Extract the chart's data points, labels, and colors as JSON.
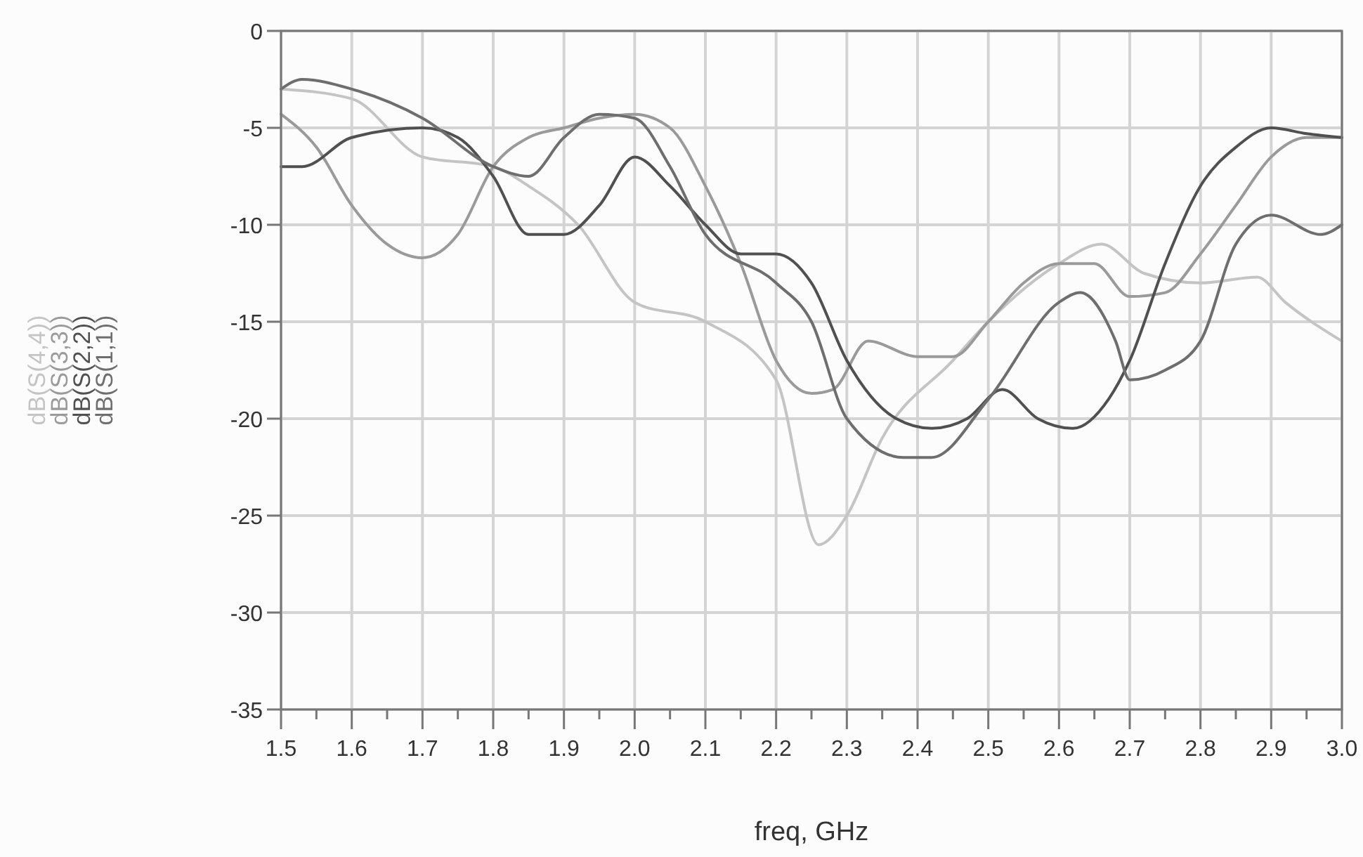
{
  "chart_data": {
    "type": "line",
    "xlabel": "freq, GHz",
    "xlim": [
      1.5,
      3.0
    ],
    "xticks": [
      {
        "value": 1.5,
        "label": "1.5"
      },
      {
        "value": 1.55,
        "label": null
      },
      {
        "value": 1.6,
        "label": "1.6"
      },
      {
        "value": 1.65,
        "label": null
      },
      {
        "value": 1.7,
        "label": "1.7"
      },
      {
        "value": 1.75,
        "label": null
      },
      {
        "value": 1.8,
        "label": "1.8"
      },
      {
        "value": 1.85,
        "label": null
      },
      {
        "value": 1.9,
        "label": "1.9"
      },
      {
        "value": 1.95,
        "label": null
      },
      {
        "value": 2.0,
        "label": "2.0"
      },
      {
        "value": 2.05,
        "label": null
      },
      {
        "value": 2.1,
        "label": "2.1"
      },
      {
        "value": 2.15,
        "label": null
      },
      {
        "value": 2.2,
        "label": "2.2"
      },
      {
        "value": 2.25,
        "label": null
      },
      {
        "value": 2.3,
        "label": "2.3"
      },
      {
        "value": 2.35,
        "label": null
      },
      {
        "value": 2.4,
        "label": "2.4"
      },
      {
        "value": 2.45,
        "label": null
      },
      {
        "value": 2.5,
        "label": "2.5"
      },
      {
        "value": 2.55,
        "label": null
      },
      {
        "value": 2.6,
        "label": "2.6"
      },
      {
        "value": 2.65,
        "label": null
      },
      {
        "value": 2.7,
        "label": "2.7"
      },
      {
        "value": 2.75,
        "label": null
      },
      {
        "value": 2.8,
        "label": "2.8"
      },
      {
        "value": 2.85,
        "label": null
      },
      {
        "value": 2.9,
        "label": "2.9"
      },
      {
        "value": 2.95,
        "label": null
      },
      {
        "value": 3.0,
        "label": "3.0"
      }
    ],
    "ylim": [
      -35,
      0
    ],
    "yticks": [
      0,
      -5,
      -10,
      -15,
      -20,
      -25,
      -30,
      -35
    ],
    "grid": true,
    "legend": "left",
    "marker": "none",
    "line_style": "solid",
    "series": [
      {
        "name": "dB(S(4,4))",
        "color": "#c4c4c4",
        "x": [
          1.5,
          1.6,
          1.7,
          1.8,
          1.85,
          1.92,
          2.0,
          2.1,
          2.2,
          2.26,
          2.3,
          2.35,
          2.45,
          2.5,
          2.6,
          2.66,
          2.72,
          2.8,
          2.88,
          2.92,
          3.0
        ],
        "values": [
          -3,
          -3.5,
          -6.5,
          -7,
          -8,
          -10,
          -14,
          -15,
          -18,
          -26.5,
          -25,
          -21,
          -17,
          -15,
          -12,
          -11,
          -12.5,
          -13,
          -12.7,
          -14,
          -16
        ]
      },
      {
        "name": "dB(S(3,3))",
        "color": "#9a9a9a",
        "x": [
          1.5,
          1.55,
          1.6,
          1.65,
          1.7,
          1.75,
          1.8,
          1.85,
          1.9,
          1.95,
          2.0,
          2.05,
          2.1,
          2.15,
          2.2,
          2.25,
          2.28,
          2.33,
          2.4,
          2.45,
          2.5,
          2.55,
          2.6,
          2.65,
          2.7,
          2.75,
          2.8,
          2.85,
          2.9,
          2.95,
          3.0
        ],
        "values": [
          -4.3,
          -6,
          -9,
          -11,
          -11.7,
          -10.5,
          -7,
          -5.5,
          -5,
          -4.5,
          -4.3,
          -5,
          -8,
          -12,
          -17,
          -18.7,
          -18.5,
          -16,
          -16.8,
          -16.8,
          -15,
          -13,
          -12,
          -12,
          -13.7,
          -13.5,
          -11.5,
          -9,
          -6.5,
          -5.5,
          -5.5
        ]
      },
      {
        "name": "dB(S(2,2))",
        "color": "#505050",
        "x": [
          1.5,
          1.53,
          1.6,
          1.7,
          1.75,
          1.8,
          1.85,
          1.9,
          1.95,
          2.0,
          2.05,
          2.1,
          2.15,
          2.2,
          2.25,
          2.3,
          2.37,
          2.42,
          2.47,
          2.52,
          2.57,
          2.62,
          2.67,
          2.7,
          2.75,
          2.8,
          2.85,
          2.9,
          2.95,
          3.0
        ],
        "values": [
          -7,
          -7,
          -5.5,
          -5,
          -5.5,
          -7.5,
          -10.5,
          -10.5,
          -9,
          -6.5,
          -8,
          -10,
          -11.5,
          -11.5,
          -13,
          -17,
          -20,
          -20.5,
          -20,
          -18.5,
          -20,
          -20.5,
          -19,
          -17,
          -12,
          -8,
          -6,
          -5,
          -5.3,
          -5.5
        ]
      },
      {
        "name": "dB(S(1,1))",
        "color": "#6e6e6e",
        "x": [
          1.5,
          1.53,
          1.6,
          1.7,
          1.8,
          1.85,
          1.9,
          1.95,
          2.0,
          2.05,
          2.1,
          2.2,
          2.25,
          2.3,
          2.38,
          2.42,
          2.5,
          2.6,
          2.63,
          2.68,
          2.7,
          2.75,
          2.8,
          2.85,
          2.9,
          2.97,
          3.0
        ],
        "values": [
          -3,
          -2.5,
          -3,
          -4.5,
          -7,
          -7.5,
          -5.5,
          -4.3,
          -4.5,
          -7,
          -10.5,
          -13,
          -15,
          -20,
          -22,
          -22,
          -19,
          -14,
          -13.5,
          -16,
          -18,
          -17.5,
          -16,
          -11,
          -9.5,
          -10.5,
          -10
        ]
      }
    ]
  }
}
